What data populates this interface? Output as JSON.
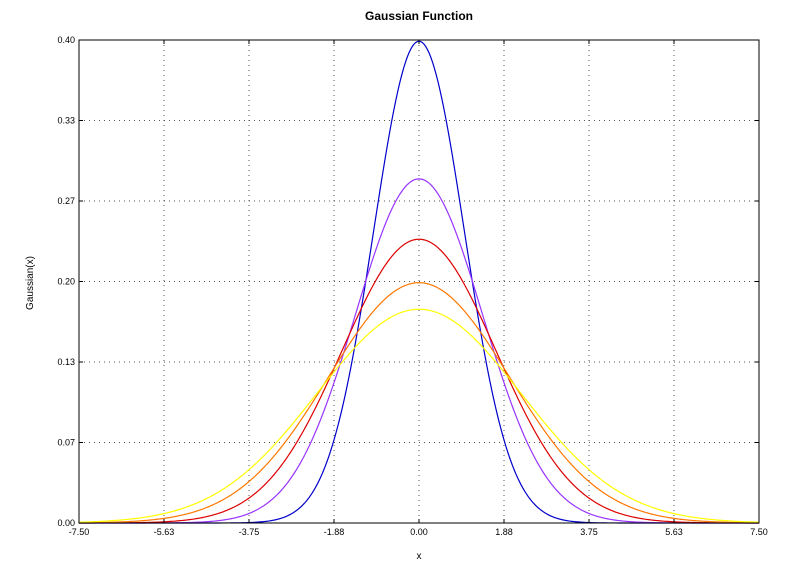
{
  "chart_data": {
    "type": "line",
    "title": "Gaussian Function",
    "xlabel": "x",
    "ylabel": "Gaussian(x)",
    "xlim": [
      -7.5,
      7.5
    ],
    "ylim": [
      0,
      0.4
    ],
    "x_ticks": [
      "-7.50",
      "-5.63",
      "-3.75",
      "-1.88",
      "0.00",
      "1.88",
      "3.75",
      "5.63",
      "7.50"
    ],
    "y_ticks": [
      "0.00",
      "0.07",
      "0.13",
      "0.20",
      "0.27",
      "0.33",
      "0.40"
    ],
    "grid": true,
    "series": [
      {
        "mean": 0,
        "std": 1.0,
        "peak": 0.399,
        "color": "#0000cc"
      },
      {
        "mean": 0,
        "std": 1.4,
        "peak": 0.285,
        "color": "#9933ff"
      },
      {
        "mean": 0,
        "std": 1.7,
        "peak": 0.235,
        "color": "#dd0000"
      },
      {
        "mean": 0,
        "std": 2.0,
        "peak": 0.199,
        "color": "#ff7700"
      },
      {
        "mean": 0,
        "std": 2.25,
        "peak": 0.177,
        "color": "#ffff00"
      }
    ]
  }
}
